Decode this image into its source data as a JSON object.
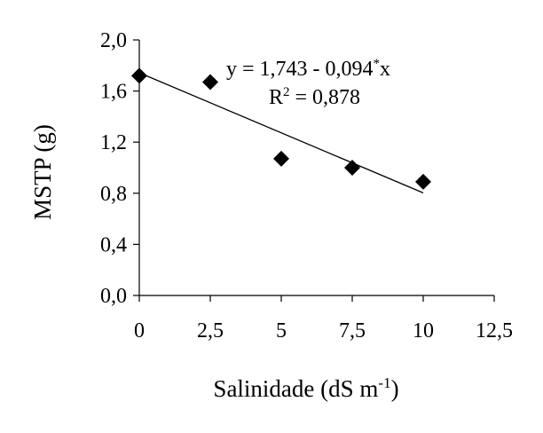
{
  "chart_data": {
    "type": "scatter",
    "xlabel": {
      "main": "Salinidade (dS m",
      "sup": "-1",
      "close": ")"
    },
    "ylabel": "MSTP (g)",
    "xlim": [
      0,
      12.5
    ],
    "ylim": [
      0,
      2.0
    ],
    "x_ticks": [
      "0",
      "2,5",
      "5",
      "7,5",
      "10",
      "12,5"
    ],
    "x_tick_values": [
      0,
      2.5,
      5,
      7.5,
      10,
      12.5
    ],
    "y_ticks": [
      "0,0",
      "0,4",
      "0,8",
      "1,2",
      "1,6",
      "2,0"
    ],
    "y_tick_values": [
      0,
      0.4,
      0.8,
      1.2,
      1.6,
      2.0
    ],
    "grid": false,
    "marker": "diamond",
    "points": [
      {
        "x": 0,
        "y": 1.72
      },
      {
        "x": 2.5,
        "y": 1.67
      },
      {
        "x": 5,
        "y": 1.07
      },
      {
        "x": 7.5,
        "y": 1.0
      },
      {
        "x": 10,
        "y": 0.89
      }
    ],
    "trendline": {
      "x_start": 0,
      "x_end": 10,
      "intercept": 1.743,
      "slope": -0.094
    },
    "equation": {
      "main": "y = 1,743 - 0,094",
      "sup": "*",
      "tail": "x"
    },
    "r2": {
      "label": "R",
      "sup": "2",
      "value": " = 0,878"
    },
    "colors": {
      "marks": "#000000",
      "axes": "#000000",
      "background": "#ffffff"
    }
  }
}
